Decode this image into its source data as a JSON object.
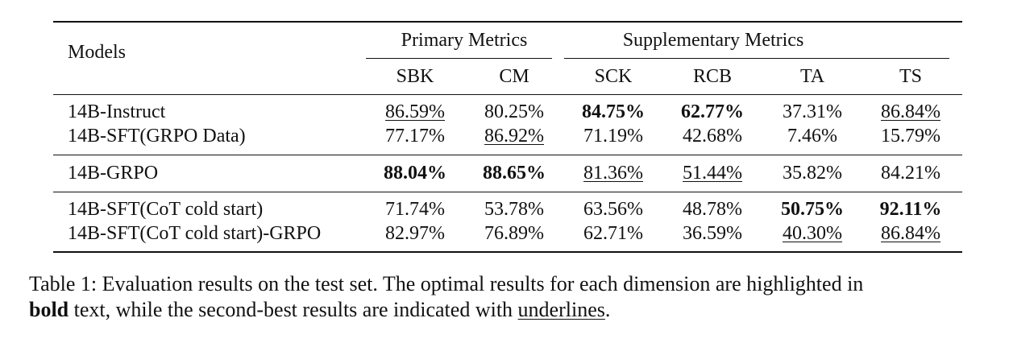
{
  "table": {
    "models_header": "Models",
    "group_headers": {
      "primary": "Primary Metrics",
      "supplementary": "Supplementary Metrics"
    },
    "columns": [
      "SBK",
      "CM",
      "SCK",
      "RCB",
      "TA",
      "TS"
    ],
    "rows": [
      {
        "model": "14B-Instruct",
        "cells": [
          {
            "value": "86.59%",
            "style": "underline"
          },
          {
            "value": "80.25%",
            "style": "normal"
          },
          {
            "value": "84.75%",
            "style": "bold"
          },
          {
            "value": "62.77%",
            "style": "bold"
          },
          {
            "value": "37.31%",
            "style": "normal"
          },
          {
            "value": "86.84%",
            "style": "underline"
          }
        ]
      },
      {
        "model": "14B-SFT(GRPO Data)",
        "cells": [
          {
            "value": "77.17%",
            "style": "normal"
          },
          {
            "value": "86.92%",
            "style": "underline"
          },
          {
            "value": "71.19%",
            "style": "normal"
          },
          {
            "value": "42.68%",
            "style": "normal"
          },
          {
            "value": "7.46%",
            "style": "normal"
          },
          {
            "value": "15.79%",
            "style": "normal"
          }
        ]
      },
      {
        "model": "14B-GRPO",
        "cells": [
          {
            "value": "88.04%",
            "style": "bold"
          },
          {
            "value": "88.65%",
            "style": "bold"
          },
          {
            "value": "81.36%",
            "style": "underline"
          },
          {
            "value": "51.44%",
            "style": "underline"
          },
          {
            "value": "35.82%",
            "style": "normal"
          },
          {
            "value": "84.21%",
            "style": "normal"
          }
        ]
      },
      {
        "model": "14B-SFT(CoT cold start)",
        "cells": [
          {
            "value": "71.74%",
            "style": "normal"
          },
          {
            "value": "53.78%",
            "style": "normal"
          },
          {
            "value": "63.56%",
            "style": "normal"
          },
          {
            "value": "48.78%",
            "style": "normal"
          },
          {
            "value": "50.75%",
            "style": "bold"
          },
          {
            "value": "92.11%",
            "style": "bold"
          }
        ]
      },
      {
        "model": "14B-SFT(CoT cold start)-GRPO",
        "cells": [
          {
            "value": "82.97%",
            "style": "normal"
          },
          {
            "value": "76.89%",
            "style": "normal"
          },
          {
            "value": "62.71%",
            "style": "normal"
          },
          {
            "value": "36.59%",
            "style": "normal"
          },
          {
            "value": "40.30%",
            "style": "underline"
          },
          {
            "value": "86.84%",
            "style": "underline"
          }
        ]
      }
    ]
  },
  "caption": {
    "line1": "Table 1: Evaluation results on the test set. The optimal results for each dimension are highlighted in",
    "bold_word": "bold",
    "line2_middle": " text, while the second-best results are indicated with ",
    "underline_word": "underlines",
    "line2_end": "."
  }
}
